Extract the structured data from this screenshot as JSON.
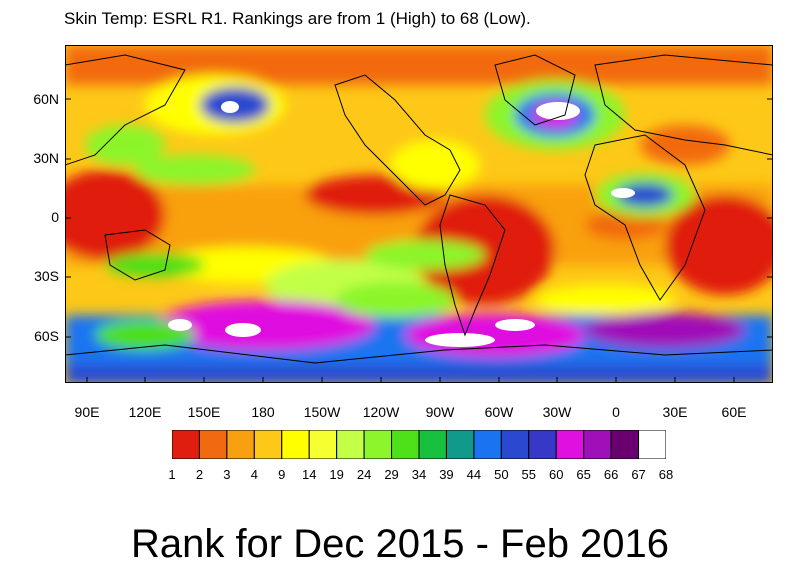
{
  "title": "Skin Temp: ESRL R1. Rankings are from 1 (High) to 68 (Low).",
  "lat_labels": [
    "60N",
    "30N",
    "0",
    "30S",
    "60S"
  ],
  "lon_labels": [
    "90E",
    "120E",
    "150E",
    "180",
    "150W",
    "120W",
    "90W",
    "60W",
    "30W",
    "0",
    "30E",
    "60E"
  ],
  "legend": {
    "colors": [
      "#e01e10",
      "#f26a10",
      "#f9a010",
      "#fdc818",
      "#ffff00",
      "#f6ff30",
      "#c2ff46",
      "#8cf52c",
      "#4ee018",
      "#18c040",
      "#109a8c",
      "#1a74f0",
      "#2a48d0",
      "#3838c8",
      "#e010e0",
      "#a010b8",
      "#6a0070",
      "#ffffff"
    ],
    "labels": [
      "1",
      "2",
      "3",
      "4",
      "9",
      "14",
      "19",
      "24",
      "29",
      "34",
      "39",
      "44",
      "50",
      "55",
      "60",
      "65",
      "66",
      "67",
      "68"
    ]
  },
  "caption": "Rank for Dec 2015 - Feb 2016"
}
